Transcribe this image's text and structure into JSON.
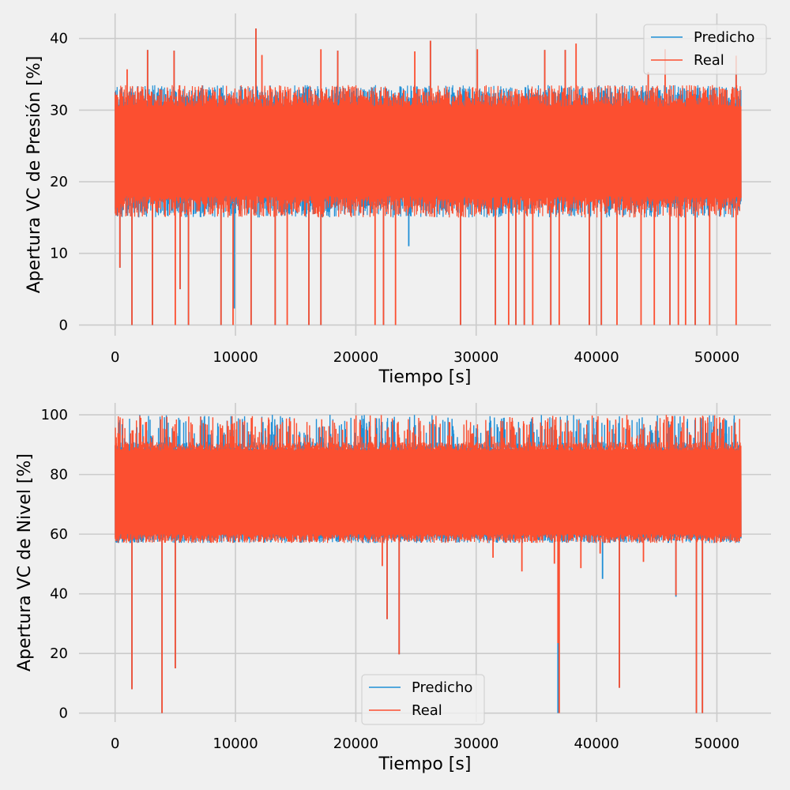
{
  "colors": {
    "predicted": "#1f8fd6",
    "real": "#fc4f30",
    "background": "#f0f0f0",
    "grid": "#cbcbcb"
  },
  "chart_data": [
    {
      "type": "line",
      "xlabel": "Tiempo [s]",
      "ylabel": "Apertura VC de Presión [%]",
      "xlim": [
        -3000,
        54500
      ],
      "ylim": [
        -1.5,
        43.5
      ],
      "xticks": [
        0,
        10000,
        20000,
        30000,
        40000,
        50000
      ],
      "xtick_labels": [
        "0",
        "10000",
        "20000",
        "30000",
        "40000",
        "50000"
      ],
      "yticks": [
        0,
        10,
        20,
        30,
        40
      ],
      "ytick_labels": [
        "0",
        "10",
        "20",
        "30",
        "40"
      ],
      "grid": true,
      "legend": {
        "position": "top-right",
        "entries": [
          "Predicho",
          "Real"
        ]
      },
      "series": [
        {
          "name": "Predicho",
          "color": "#1f8fd6",
          "x_range": [
            0,
            52000
          ],
          "band": [
            15,
            33.5
          ],
          "spikes": [
            {
              "x": 400,
              "y": 8
            },
            {
              "x": 1400,
              "y": 0
            },
            {
              "x": 2700,
              "y": 38.4
            },
            {
              "x": 3100,
              "y": 0
            },
            {
              "x": 4900,
              "y": 38.3
            },
            {
              "x": 5400,
              "y": 5
            },
            {
              "x": 6100,
              "y": 0
            },
            {
              "x": 8800,
              "y": 0
            },
            {
              "x": 9900,
              "y": 2.3
            },
            {
              "x": 11300,
              "y": 0
            },
            {
              "x": 11700,
              "y": 41.4
            },
            {
              "x": 13300,
              "y": 0
            },
            {
              "x": 16100,
              "y": 0
            },
            {
              "x": 17100,
              "y": 0
            },
            {
              "x": 18500,
              "y": 38.3
            },
            {
              "x": 22300,
              "y": 0
            },
            {
              "x": 24400,
              "y": 11
            },
            {
              "x": 26200,
              "y": 39.7
            },
            {
              "x": 28700,
              "y": 0
            },
            {
              "x": 31600,
              "y": 0
            },
            {
              "x": 33300,
              "y": 0
            },
            {
              "x": 34000,
              "y": 0
            },
            {
              "x": 35700,
              "y": 38.4
            },
            {
              "x": 36200,
              "y": 0
            },
            {
              "x": 37400,
              "y": 38.4
            },
            {
              "x": 39400,
              "y": 0
            },
            {
              "x": 40400,
              "y": 0
            },
            {
              "x": 44300,
              "y": 35.3
            },
            {
              "x": 46100,
              "y": 0
            },
            {
              "x": 48200,
              "y": 0
            },
            {
              "x": 51600,
              "y": 35
            }
          ]
        },
        {
          "name": "Real",
          "color": "#fc4f30",
          "x_range": [
            0,
            52000
          ],
          "band": [
            15,
            33.5
          ],
          "spikes": [
            {
              "x": 400,
              "y": 8
            },
            {
              "x": 1000,
              "y": 35.7
            },
            {
              "x": 1400,
              "y": 0
            },
            {
              "x": 2700,
              "y": 38.4
            },
            {
              "x": 3100,
              "y": 0
            },
            {
              "x": 4900,
              "y": 38.3
            },
            {
              "x": 5000,
              "y": 0
            },
            {
              "x": 5400,
              "y": 5
            },
            {
              "x": 6100,
              "y": 0
            },
            {
              "x": 8800,
              "y": 0
            },
            {
              "x": 9800,
              "y": 0
            },
            {
              "x": 11300,
              "y": 0
            },
            {
              "x": 11700,
              "y": 41.4
            },
            {
              "x": 12200,
              "y": 37.7
            },
            {
              "x": 13300,
              "y": 0
            },
            {
              "x": 14300,
              "y": 0
            },
            {
              "x": 16100,
              "y": 0
            },
            {
              "x": 17100,
              "y": 0
            },
            {
              "x": 17100,
              "y": 38.5
            },
            {
              "x": 18500,
              "y": 38.3
            },
            {
              "x": 21600,
              "y": 0
            },
            {
              "x": 22300,
              "y": 0
            },
            {
              "x": 23300,
              "y": 0
            },
            {
              "x": 24900,
              "y": 38.2
            },
            {
              "x": 26200,
              "y": 39.7
            },
            {
              "x": 28700,
              "y": 0
            },
            {
              "x": 30100,
              "y": 38.5
            },
            {
              "x": 31600,
              "y": 0
            },
            {
              "x": 32700,
              "y": 0
            },
            {
              "x": 33300,
              "y": 0
            },
            {
              "x": 34000,
              "y": 0
            },
            {
              "x": 34700,
              "y": 0
            },
            {
              "x": 35700,
              "y": 38.4
            },
            {
              "x": 36200,
              "y": 0
            },
            {
              "x": 36900,
              "y": 0
            },
            {
              "x": 37400,
              "y": 38.4
            },
            {
              "x": 38300,
              "y": 39.3
            },
            {
              "x": 39400,
              "y": 0
            },
            {
              "x": 40400,
              "y": 0
            },
            {
              "x": 41700,
              "y": 0
            },
            {
              "x": 43700,
              "y": 0
            },
            {
              "x": 44300,
              "y": 35.3
            },
            {
              "x": 44800,
              "y": 0
            },
            {
              "x": 45700,
              "y": 38.5
            },
            {
              "x": 46100,
              "y": 0
            },
            {
              "x": 46800,
              "y": 0
            },
            {
              "x": 47400,
              "y": 0
            },
            {
              "x": 48200,
              "y": 0
            },
            {
              "x": 49400,
              "y": 0
            },
            {
              "x": 51600,
              "y": 0
            },
            {
              "x": 51600,
              "y": 37.6
            }
          ]
        }
      ]
    },
    {
      "type": "line",
      "xlabel": "Tiempo [s]",
      "ylabel": "Apertura VC de Nivel [%]",
      "xlim": [
        -3000,
        54500
      ],
      "ylim": [
        -3,
        104
      ],
      "xticks": [
        0,
        10000,
        20000,
        30000,
        40000,
        50000
      ],
      "xtick_labels": [
        "0",
        "10000",
        "20000",
        "30000",
        "40000",
        "50000"
      ],
      "yticks": [
        0,
        20,
        40,
        60,
        80,
        100
      ],
      "ytick_labels": [
        "0",
        "20",
        "40",
        "60",
        "80",
        "100"
      ],
      "grid": true,
      "legend": {
        "position": "bottom-center",
        "entries": [
          "Predicho",
          "Real"
        ]
      },
      "series": [
        {
          "name": "Predicho",
          "color": "#1f8fd6",
          "x_range": [
            0,
            52000
          ],
          "band": [
            57,
            91
          ],
          "upper_band": [
            92,
            100
          ],
          "spikes": [
            {
              "x": 1400,
              "y": 8
            },
            {
              "x": 3900,
              "y": 0
            },
            {
              "x": 5000,
              "y": 15
            },
            {
              "x": 22600,
              "y": 31.5
            },
            {
              "x": 23600,
              "y": 19.7
            },
            {
              "x": 36800,
              "y": 0
            },
            {
              "x": 40500,
              "y": 45
            },
            {
              "x": 41900,
              "y": 8.5
            },
            {
              "x": 46600,
              "y": 39
            },
            {
              "x": 48300,
              "y": 0
            },
            {
              "x": 48800,
              "y": 0
            }
          ]
        },
        {
          "name": "Real",
          "color": "#fc4f30",
          "x_range": [
            0,
            52000
          ],
          "band": [
            57,
            91
          ],
          "upper_band": [
            92,
            100
          ],
          "spikes": [
            {
              "x": 1400,
              "y": 8
            },
            {
              "x": 3900,
              "y": 0
            },
            {
              "x": 5000,
              "y": 15
            },
            {
              "x": 22200,
              "y": 49.3
            },
            {
              "x": 22600,
              "y": 31.5
            },
            {
              "x": 23600,
              "y": 19.7
            },
            {
              "x": 31400,
              "y": 52.1
            },
            {
              "x": 33800,
              "y": 47.5
            },
            {
              "x": 36500,
              "y": 50.1
            },
            {
              "x": 36800,
              "y": 23.5
            },
            {
              "x": 36900,
              "y": 0
            },
            {
              "x": 38700,
              "y": 48.6
            },
            {
              "x": 40300,
              "y": 53.5
            },
            {
              "x": 41900,
              "y": 8.5
            },
            {
              "x": 43900,
              "y": 50.7
            },
            {
              "x": 46600,
              "y": 39.5
            },
            {
              "x": 48300,
              "y": 0
            },
            {
              "x": 48800,
              "y": 0
            }
          ]
        }
      ]
    }
  ]
}
